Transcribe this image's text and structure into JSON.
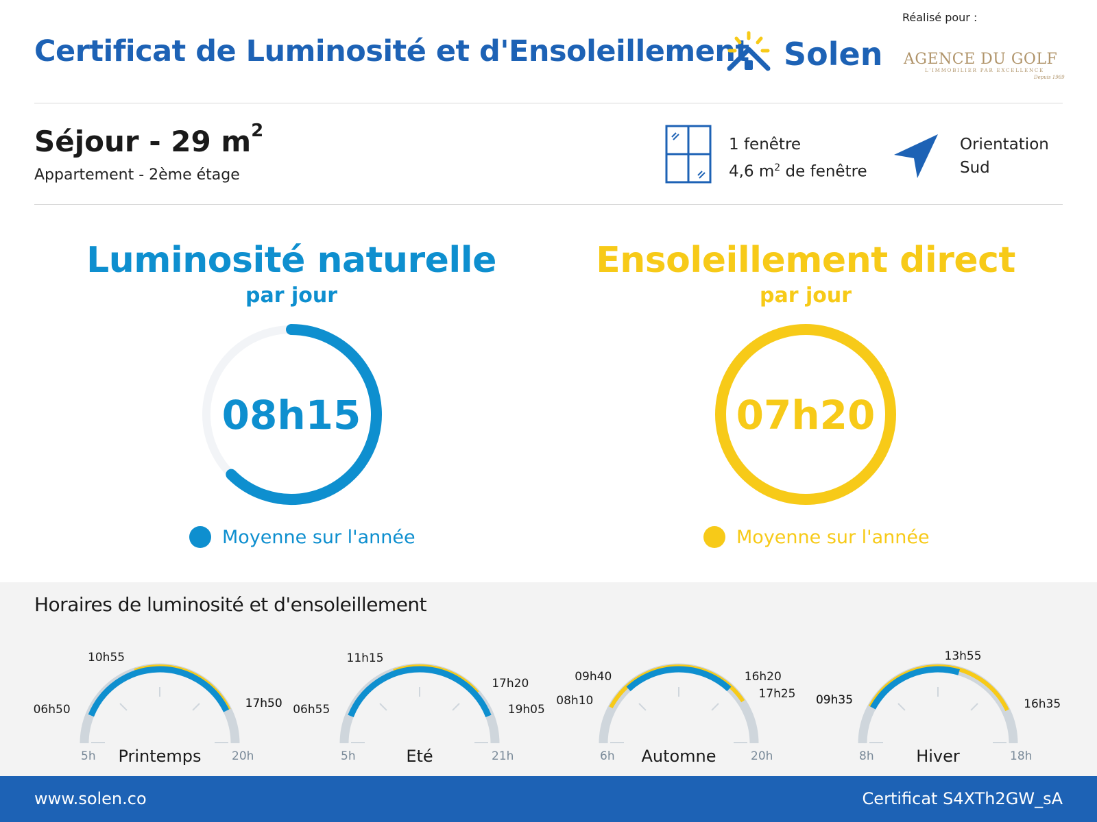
{
  "header": {
    "title": "Certificat de Luminosité et d'Ensoleillement",
    "brand": "Solen",
    "made_for_label": "Réalisé pour :",
    "partner_name": "AGENCE DU GOLF",
    "partner_tagline": "L'IMMOBILIER PAR EXCELLENCE",
    "partner_since": "Depuis 1969"
  },
  "room": {
    "name": "Séjour - 29 m",
    "area_exponent": "2",
    "subtitle": "Appartement - 2ème étage"
  },
  "windows": {
    "count_label": "1 fenêtre",
    "area_value": "4,6 m",
    "area_exponent": "2",
    "area_suffix": " de fenêtre"
  },
  "orientation": {
    "label": "Orientation",
    "value": "Sud"
  },
  "luminosity": {
    "title": "Luminosité naturelle",
    "subtitle": "par jour",
    "value": "08h15",
    "fraction": 0.625,
    "legend": "Moyenne sur l'année",
    "color": "#0e8fcf"
  },
  "sunshine": {
    "title": "Ensoleillement direct",
    "subtitle": "par jour",
    "value": "07h20",
    "fraction": 1.0,
    "legend": "Moyenne sur l'année",
    "color": "#f7ca18"
  },
  "schedule": {
    "title": "Horaires de luminosité et d'ensoleillement",
    "seasons": [
      {
        "name": "Printemps",
        "axis_start": "5h",
        "axis_end": "20h",
        "start_h": 5,
        "end_h": 20,
        "light_start": "06h50",
        "light_end": "17h50",
        "sun_start": "10h55",
        "sun_end": "17h50",
        "light_start_h": 6.833,
        "light_end_h": 17.833,
        "sun_start_h": 10.917,
        "sun_end_h": 17.833
      },
      {
        "name": "Eté",
        "axis_start": "5h",
        "axis_end": "21h",
        "start_h": 5,
        "end_h": 21,
        "light_start": "06h55",
        "light_end": "19h05",
        "sun_start": "11h15",
        "sun_end": "17h20",
        "light_start_h": 6.917,
        "light_end_h": 19.083,
        "sun_start_h": 11.25,
        "sun_end_h": 17.333
      },
      {
        "name": "Automne",
        "axis_start": "6h",
        "axis_end": "20h",
        "start_h": 6,
        "end_h": 20,
        "light_start": "09h40",
        "light_end": "16h20",
        "sun_start": "08h10",
        "sun_end": "17h25",
        "light_start_h": 9.667,
        "light_end_h": 16.333,
        "sun_start_h": 8.167,
        "sun_end_h": 17.417
      },
      {
        "name": "Hiver",
        "axis_start": "8h",
        "axis_end": "18h",
        "start_h": 8,
        "end_h": 18,
        "light_start": "09h35",
        "light_end": "13h55",
        "sun_start": "09h35",
        "sun_end": "16h35",
        "light_start_h": 9.583,
        "light_end_h": 13.917,
        "sun_start_h": 9.583,
        "sun_end_h": 16.583
      }
    ]
  },
  "footer": {
    "website": "www.solen.co",
    "certificate_id": "Certificat S4XTh2GW_sA"
  },
  "colors": {
    "brand_blue": "#1d62b5",
    "light_blue": "#0e8fcf",
    "sun_yellow": "#f7ca18",
    "track_grey": "#cfd6dc"
  }
}
